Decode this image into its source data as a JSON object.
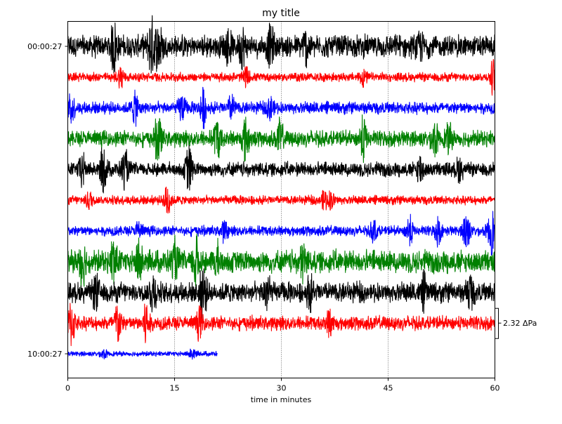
{
  "chart_data": {
    "type": "line",
    "title": "my title",
    "xlabel": "time in minutes",
    "ylabel": "",
    "xlim": [
      0,
      60
    ],
    "xticks": [
      "0",
      "15",
      "30",
      "45",
      "60"
    ],
    "ytick_labels": [
      {
        "label": "00:00:27",
        "trace": 0
      },
      {
        "label": "10:00:27",
        "trace": 10
      }
    ],
    "grid": "vertical dotted at x ticks",
    "scale_bar_label": "2.32 ΔPa",
    "traces": [
      {
        "color": "#000000",
        "t_start": 0,
        "t_end": 60,
        "amp": 0.55,
        "bursts": [
          [
            6.5,
            0.9
          ],
          [
            11.8,
            1.0
          ],
          [
            12.8,
            0.8
          ],
          [
            22.5,
            0.5
          ],
          [
            24.5,
            0.6
          ],
          [
            28.5,
            0.6
          ],
          [
            33.5,
            0.55
          ],
          [
            49.5,
            0.35
          ]
        ]
      },
      {
        "color": "#ff0000",
        "t_start": 0,
        "t_end": 60,
        "amp": 0.22,
        "bursts": [
          [
            7.5,
            0.45
          ],
          [
            25,
            0.35
          ],
          [
            41.5,
            0.3
          ],
          [
            59.8,
            0.7
          ]
        ]
      },
      {
        "color": "#0000ff",
        "t_start": 0,
        "t_end": 60,
        "amp": 0.3,
        "bursts": [
          [
            0.5,
            0.5
          ],
          [
            9.5,
            0.6
          ],
          [
            16,
            0.5
          ],
          [
            19,
            0.7
          ],
          [
            23,
            0.45
          ],
          [
            28.5,
            0.45
          ]
        ]
      },
      {
        "color": "#008000",
        "t_start": 0,
        "t_end": 60,
        "amp": 0.4,
        "bursts": [
          [
            12.7,
            0.9
          ],
          [
            21,
            0.7
          ],
          [
            25,
            0.8
          ],
          [
            29.8,
            0.6
          ],
          [
            41.5,
            0.75
          ],
          [
            51.5,
            0.55
          ],
          [
            53.5,
            0.45
          ]
        ]
      },
      {
        "color": "#000000",
        "t_start": 0,
        "t_end": 60,
        "amp": 0.35,
        "bursts": [
          [
            2,
            0.6
          ],
          [
            5,
            0.8
          ],
          [
            8,
            0.7
          ],
          [
            17,
            0.9
          ],
          [
            49.5,
            0.5
          ],
          [
            55,
            0.4
          ]
        ]
      },
      {
        "color": "#ff0000",
        "t_start": 0,
        "t_end": 60,
        "amp": 0.22,
        "bursts": [
          [
            3,
            0.35
          ],
          [
            14,
            0.7
          ],
          [
            36,
            0.35
          ],
          [
            37,
            0.3
          ]
        ]
      },
      {
        "color": "#0000ff",
        "t_start": 0,
        "t_end": 60,
        "amp": 0.25,
        "bursts": [
          [
            10,
            0.35
          ],
          [
            22,
            0.35
          ],
          [
            43,
            0.4
          ],
          [
            48,
            0.55
          ],
          [
            52,
            0.5
          ],
          [
            56,
            0.8
          ],
          [
            59.5,
            0.9
          ]
        ]
      },
      {
        "color": "#008000",
        "t_start": 0,
        "t_end": 60,
        "amp": 0.55,
        "bursts": [
          [
            2,
            0.9
          ],
          [
            6.5,
            0.8
          ],
          [
            10,
            0.7
          ],
          [
            15,
            0.6
          ],
          [
            18,
            0.9
          ],
          [
            21,
            0.5
          ],
          [
            33,
            0.6
          ]
        ]
      },
      {
        "color": "#000000",
        "t_start": 0,
        "t_end": 60,
        "amp": 0.5,
        "bursts": [
          [
            4,
            0.6
          ],
          [
            12,
            0.7
          ],
          [
            19,
            1.0
          ],
          [
            28,
            0.7
          ],
          [
            34,
            0.5
          ],
          [
            50,
            0.5
          ],
          [
            56.5,
            0.6
          ]
        ]
      },
      {
        "color": "#ff0000",
        "t_start": 0,
        "t_end": 60,
        "amp": 0.35,
        "bursts": [
          [
            0.5,
            0.9
          ],
          [
            7,
            0.8
          ],
          [
            11,
            0.85
          ],
          [
            18.5,
            0.5
          ],
          [
            36.8,
            0.45
          ]
        ]
      },
      {
        "color": "#0000ff",
        "t_start": 0,
        "t_end": 21,
        "amp": 0.12,
        "bursts": [
          [
            5,
            0.15
          ],
          [
            17.5,
            0.2
          ]
        ]
      }
    ]
  }
}
